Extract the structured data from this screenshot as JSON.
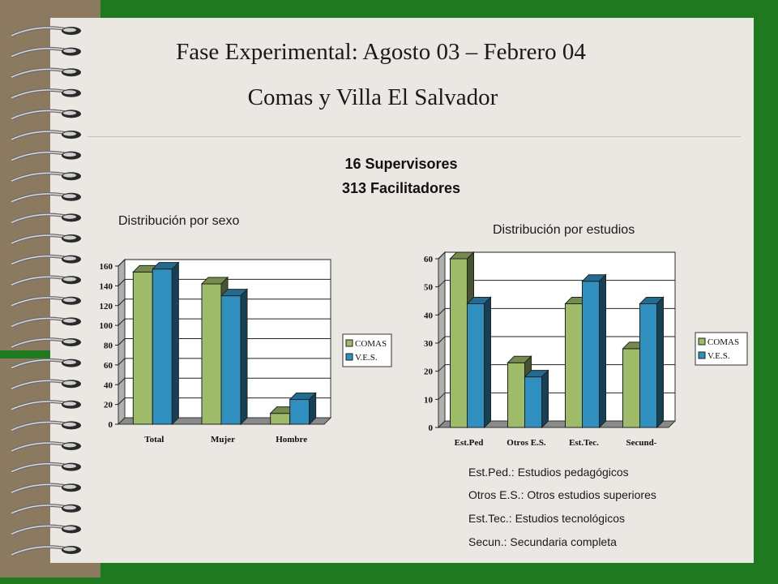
{
  "header": {
    "title": "Fase Experimental:  Agosto 03 – Febrero 04",
    "subtitle": "Comas y Villa El Salvador"
  },
  "stats": {
    "supervisores": "16 Supervisores",
    "facilitadores": "313 Facilitadores"
  },
  "chart_labels": {
    "left_title": "Distribución por sexo",
    "right_title": "Distribución por estudios"
  },
  "notes": [
    "Est.Ped.: Estudios pedagógicos",
    "Otros  E.S.: Otros estudios superiores",
    "Est.Tec.:  Estudios tecnológicos",
    "Secun.: Secundaria completa"
  ],
  "colors": {
    "comas": "#9dbb68",
    "ves": "#2f8fbf"
  },
  "chart_data": [
    {
      "type": "bar",
      "title": "Distribución por sexo",
      "categories": [
        "Total",
        "Mujer",
        "Hombre"
      ],
      "series": [
        {
          "name": "COMAS",
          "values": [
            154,
            142,
            11
          ]
        },
        {
          "name": "V.E.S.",
          "values": [
            157,
            130,
            25
          ]
        }
      ],
      "ylim": [
        0,
        160
      ],
      "yticks": [
        0,
        20,
        40,
        60,
        80,
        100,
        120,
        140,
        160
      ],
      "grid": true,
      "legend": "right"
    },
    {
      "type": "bar",
      "title": "Distribución por estudios",
      "categories": [
        "Est.Ped",
        "Otros E.S.",
        "Est.Tec.",
        "Secund-"
      ],
      "series": [
        {
          "name": "COMAS",
          "values": [
            60,
            23,
            44,
            28
          ]
        },
        {
          "name": "V.E.S.",
          "values": [
            44,
            18,
            52,
            44
          ]
        }
      ],
      "ylim": [
        0,
        60
      ],
      "yticks": [
        0,
        10,
        20,
        30,
        40,
        50,
        60
      ],
      "grid": true,
      "legend": "right"
    }
  ]
}
